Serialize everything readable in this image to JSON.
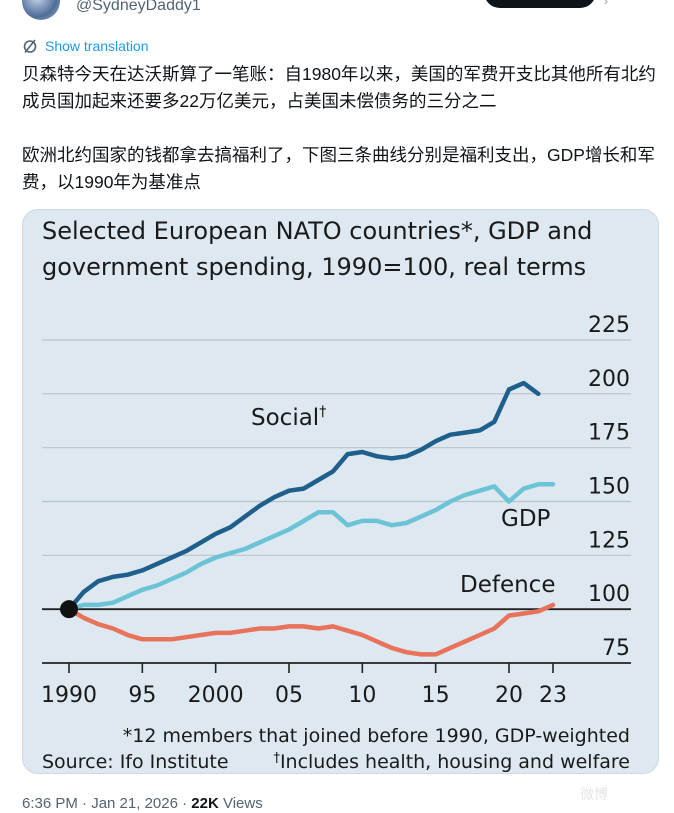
{
  "tweet": {
    "handle": "@SydneyDaddy1",
    "translate_label": "Show translation",
    "paragraph1": "贝森特今天在达沃斯算了一笔账：自1980年以来，美国的军费开支比其他所有北约成员国加起来还要多22万亿美元，占美国未偿债务的三分之二",
    "paragraph2": "欧洲北约国家的钱都拿去搞福利了，下图三条曲线分别是福利支出，GDP增长和军费，以1990年为基准点",
    "time": "6:36 PM · Jan 21, 2026 · ",
    "views_count": "22K",
    "views_label": " Views",
    "watermark": "微博"
  },
  "chart_data": {
    "type": "line",
    "title": "Selected European NATO countries*, GDP and government spending, 1990=100, real terms",
    "title_line1": "Selected European NATO countries*, GDP and",
    "title_line2": "government spending, 1990=100, real terms",
    "xlabel": "",
    "ylabel": "",
    "x": [
      1990,
      1991,
      1992,
      1993,
      1994,
      1995,
      1996,
      1997,
      1998,
      1999,
      2000,
      2001,
      2002,
      2003,
      2004,
      2005,
      2006,
      2007,
      2008,
      2009,
      2010,
      2011,
      2012,
      2013,
      2014,
      2015,
      2016,
      2017,
      2018,
      2019,
      2020,
      2021,
      2022,
      2023
    ],
    "xlim": [
      1990,
      2023
    ],
    "ylim": [
      75,
      225
    ],
    "x_ticks": [
      1990,
      1995,
      2000,
      2005,
      2010,
      2015,
      2020,
      2023
    ],
    "x_tick_labels": [
      "1990",
      "95",
      "2000",
      "05",
      "10",
      "15",
      "20",
      "23"
    ],
    "y_ticks": [
      75,
      100,
      125,
      150,
      175,
      200,
      225
    ],
    "y_tick_labels": [
      "75",
      "100",
      "125",
      "150",
      "175",
      "200",
      "225"
    ],
    "grid": true,
    "series": [
      {
        "name": "Social†",
        "label": "Social",
        "label_sup": "†",
        "color": "#1f5f8b",
        "values": [
          100,
          108,
          113,
          115,
          116,
          118,
          121,
          124,
          127,
          131,
          135,
          138,
          143,
          148,
          152,
          155,
          156,
          160,
          164,
          172,
          173,
          171,
          170,
          171,
          174,
          178,
          181,
          182,
          183,
          187,
          202,
          205,
          200,
          null
        ]
      },
      {
        "name": "GDP",
        "label": "GDP",
        "color": "#6cc3d5",
        "values": [
          100,
          102,
          102,
          103,
          106,
          109,
          111,
          114,
          117,
          121,
          124,
          126,
          128,
          131,
          134,
          137,
          141,
          145,
          145,
          139,
          141,
          141,
          139,
          140,
          143,
          146,
          150,
          153,
          155,
          157,
          150,
          156,
          158,
          158
        ]
      },
      {
        "name": "Defence",
        "label": "Defence",
        "color": "#e8735a",
        "values": [
          100,
          96,
          93,
          91,
          88,
          86,
          86,
          86,
          87,
          88,
          89,
          89,
          90,
          91,
          91,
          92,
          92,
          91,
          92,
          90,
          88,
          85,
          82,
          80,
          79,
          79,
          82,
          85,
          88,
          91,
          97,
          98,
          99,
          102
        ]
      }
    ],
    "footnote1": "*12 members that joined before 1990, GDP-weighted",
    "source": "Source: Ifo Institute",
    "footnote2_sup": "†",
    "footnote2": "Includes health, housing and welfare"
  }
}
